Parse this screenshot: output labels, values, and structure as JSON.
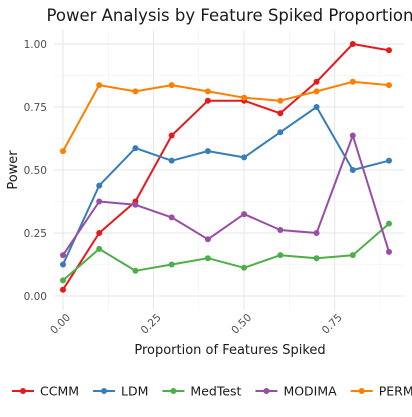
{
  "chart_data": {
    "type": "line",
    "title": "Power Analysis by Feature Spiked Proportion",
    "xlabel": "Proportion of Features Spiked",
    "ylabel": "Power",
    "xlim": [
      0,
      0.9
    ],
    "ylim": [
      0,
      1
    ],
    "x_ticks": [
      "0.00",
      "0.25",
      "0.50",
      "0.75"
    ],
    "x_tick_values": [
      0,
      0.25,
      0.5,
      0.75
    ],
    "y_ticks": [
      "0.00",
      "0.25",
      "0.50",
      "0.75",
      "1.00"
    ],
    "y_tick_values": [
      0,
      0.25,
      0.5,
      0.75,
      1.0
    ],
    "grid": true,
    "legend_position": "bottom",
    "x": [
      0.0,
      0.1,
      0.2,
      0.3,
      0.4,
      0.5,
      0.6,
      0.7,
      0.8,
      0.9
    ],
    "series": [
      {
        "name": "CCMM",
        "color": "#e41a1c",
        "values": [
          0.025,
          0.25,
          0.375,
          0.637,
          0.775,
          0.775,
          0.725,
          0.85,
          1.0,
          0.975
        ]
      },
      {
        "name": "LDM",
        "color": "#377eb8",
        "values": [
          0.125,
          0.438,
          0.587,
          0.537,
          0.575,
          0.55,
          0.65,
          0.75,
          0.5,
          0.537
        ]
      },
      {
        "name": "MedTest",
        "color": "#4daf4a",
        "values": [
          0.062,
          0.187,
          0.1,
          0.125,
          0.15,
          0.112,
          0.162,
          0.15,
          0.162,
          0.287
        ]
      },
      {
        "name": "MODIMA",
        "color": "#984ea3",
        "values": [
          0.162,
          0.375,
          0.362,
          0.312,
          0.225,
          0.325,
          0.262,
          0.25,
          0.637,
          0.175
        ]
      },
      {
        "name": "PERMANOVA-FL",
        "color": "#ff7f00",
        "values": [
          0.575,
          0.837,
          0.812,
          0.837,
          0.812,
          0.787,
          0.775,
          0.812,
          0.85,
          0.837
        ]
      }
    ]
  }
}
